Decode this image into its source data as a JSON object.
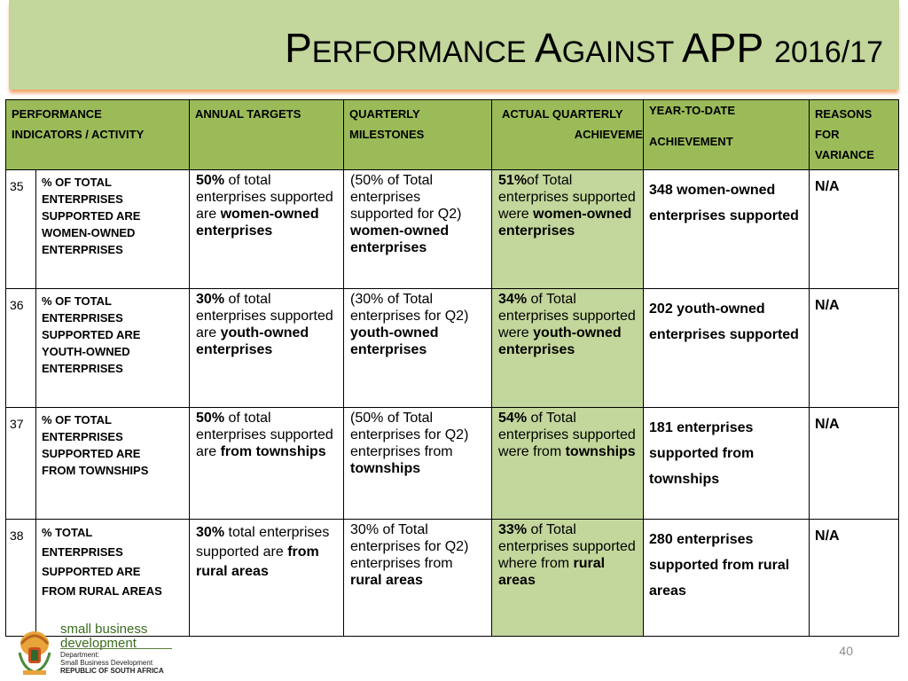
{
  "title": {
    "p1_cap": "P",
    "p1_rest": "ERFORMANCE ",
    "p2_cap": "A",
    "p2_rest": "GAINST ",
    "p3": "APP",
    "p4": "2016/17"
  },
  "headers": {
    "indicator_1": "PERFORMANCE",
    "indicator_2": "INDICATORS / ACTIVITY",
    "annual": "ANNUAL TARGETS",
    "quarterly_1": "QUARTERLY",
    "quarterly_2": "MILESTONES",
    "actual_1": "ACTUAL QUARTERLY",
    "actual_2": "ACHIEVEME",
    "ytd_1": "YEAR-TO-DATE",
    "ytd_2": "ACHIEVEMENT",
    "reasons_1": "REASONS",
    "reasons_2": "FOR",
    "reasons_3": "VARIANCE"
  },
  "rows": [
    {
      "num": "35",
      "indicator": [
        "% OF TOTAL",
        "ENTERPRISES",
        "SUPPORTED ARE",
        "WOMEN-OWNED",
        "ENTERPRISES"
      ],
      "annual": {
        "pct": "50%",
        "t1": " of total enterprises supported are ",
        "b1": "women-owned enterprises",
        "t2": "",
        "b2": ""
      },
      "quarterly": {
        "t1": "(50% of Total enterprises supported for Q2) ",
        "b1": "women-owned enterprises"
      },
      "actual": {
        "pct": "51%",
        "t1": "of Total enterprises supported were ",
        "b1": "women-owned enterprises"
      },
      "ytd": "348 women-owned enterprises supported",
      "reason": "N/A"
    },
    {
      "num": "36",
      "indicator": [
        "% OF TOTAL",
        "ENTERPRISES",
        "SUPPORTED ARE",
        "YOUTH-OWNED",
        "ENTERPRISES"
      ],
      "annual": {
        "pct": "30%",
        "t1": " of total enterprises supported are ",
        "b1": "youth-owned enterprises",
        "t2": "",
        "b2": ""
      },
      "quarterly": {
        "t1": "(30% of Total enterprises for Q2) ",
        "b1": "youth-owned enterprises"
      },
      "actual": {
        "pct": "34%",
        "t1": " of Total enterprises supported were ",
        "b1": "youth-owned enterprises"
      },
      "ytd": "202 youth-owned enterprises supported",
      "reason": "N/A"
    },
    {
      "num": "37",
      "indicator": [
        "% OF TOTAL",
        "ENTERPRISES",
        "SUPPORTED ARE",
        "FROM TOWNSHIPS"
      ],
      "annual": {
        "pct": "50%",
        "t1": " of total enterprises supported are ",
        "b1": "from townships",
        "t2": "",
        "b2": ""
      },
      "quarterly": {
        "t1": "(50% of Total enterprises for Q2) enterprises from ",
        "b1": "townships"
      },
      "actual": {
        "pct": "54%",
        "t1": " of Total enterprises supported were from ",
        "b1": "townships"
      },
      "ytd": "181 enterprises supported from townships",
      "reason": "N/A"
    },
    {
      "num": "38",
      "indicator": [
        "% TOTAL",
        "ENTERPRISES",
        "SUPPORTED ARE",
        "FROM RURAL AREAS"
      ],
      "annual": {
        "pct": "30%",
        "t1": " total enterprises supported are ",
        "b1": "from rural areas",
        "t2": "",
        "b2": ""
      },
      "quarterly": {
        "t1": "30% of Total enterprises for Q2) enterprises from ",
        "b1": "rural areas"
      },
      "actual": {
        "pct": "33%",
        "t1": " of Total enterprises supported where from ",
        "b1": "rural areas"
      },
      "ytd": "280 enterprises supported from rural areas",
      "reason": "N/A"
    }
  ],
  "logo": {
    "name_1": "small business",
    "name_2": "development",
    "dept_1": "Department:",
    "dept_2": "Small Business Development",
    "dept_3": "REPUBLIC OF SOUTH AFRICA"
  },
  "page_number": "40",
  "colors": {
    "header_green": "#9bbb59",
    "title_green": "#c3d69b",
    "actual_green": "#c3d69b"
  }
}
